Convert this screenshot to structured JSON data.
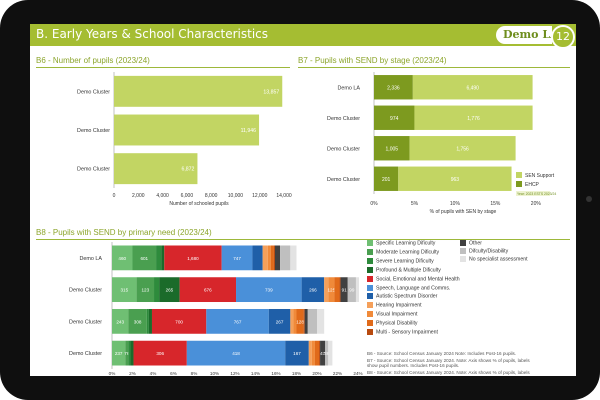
{
  "header": {
    "title": "B. Early Years & School Characteristics",
    "la_name": "Demo LA",
    "page_number": "12",
    "color": "#a5bd32"
  },
  "notes": [
    "B6 - Source: School Census January 2024 Note: Includes Post-16 pupils.",
    "B7 - Source: School Census January 2024. Note: Axis shows % of pupils, labels",
    "show pupil numbers. Includes Post-16 pupils.",
    "B8 - Source: School Census January 2024. Note: Axis shows % of pupils, labels"
  ],
  "chart_data": [
    {
      "id": "B6",
      "type": "bar",
      "orientation": "horizontal",
      "title": "B6 - Number of pupils (2023/24)",
      "categories": [
        "Demo Cluster",
        "Demo Cluster",
        "Demo Cluster"
      ],
      "values": [
        13857,
        11946,
        6872
      ],
      "value_labels": [
        "13,857",
        "11,946",
        "6,872"
      ],
      "xlabel": "Number of schooled pupils",
      "xlim": [
        0,
        14000
      ],
      "xticks": [
        "0",
        "2,000",
        "4,000",
        "6,000",
        "8,000",
        "10,000",
        "12,000",
        "14,000"
      ],
      "grid": false,
      "color": "#c2d563"
    },
    {
      "id": "B7",
      "type": "bar",
      "orientation": "horizontal",
      "stacked": true,
      "title": "B7 - Pupils with SEND by stage (2023/24)",
      "categories": [
        "Demo LA",
        "Demo Cluster",
        "Demo Cluster",
        "Demo Cluster"
      ],
      "series": [
        {
          "name": "EHCP",
          "color": "#7d9a1f",
          "values": [
            4.8,
            5.0,
            4.4,
            3.0
          ],
          "labels": [
            "2,336",
            "974",
            "1,005",
            "201"
          ]
        },
        {
          "name": "SEN Support",
          "color": "#c2d563",
          "values": [
            14.8,
            14.6,
            13.1,
            14.0
          ],
          "labels": [
            "6,490",
            "1,776",
            "1,756",
            "963"
          ]
        }
      ],
      "xlabel": "% of pupils with SEN by stage",
      "xlim": [
        0,
        22
      ],
      "xticks": [
        "0%",
        "5%",
        "10%",
        "15%",
        "20%"
      ],
      "legend_position": "bottom-right",
      "legend_note": "Year: 2023 ESTS 2023/24",
      "grid": false
    },
    {
      "id": "B8",
      "type": "bar",
      "orientation": "horizontal",
      "stacked": true,
      "title": "B8 - Pupils with SEND by primary need (2023/24)",
      "categories": [
        "Demo LA",
        "Demo Cluster",
        "Demo Cluster",
        "Demo Cluster"
      ],
      "series": [
        {
          "name": "Specific Learning Dificulty",
          "color": "#6fbf73",
          "values": [
            2.0,
            2.4,
            1.6,
            1.3
          ],
          "labels": [
            "460",
            "315",
            "243",
            "237"
          ]
        },
        {
          "name": "Moderate Learning Dificulty",
          "color": "#4a9f50",
          "values": [
            2.3,
            1.7,
            1.8,
            0.3
          ],
          "labels": [
            "601",
            "123",
            "308",
            "76"
          ]
        },
        {
          "name": "Severe Learning Dificulty",
          "color": "#2e8b3c",
          "values": [
            0.5,
            0.5,
            0.2,
            0.2
          ],
          "labels": [
            "",
            "",
            "",
            ""
          ]
        },
        {
          "name": "Profound & Multiple Dificulty",
          "color": "#1b6b2a",
          "values": [
            0.3,
            2.0,
            0.3,
            0.3
          ],
          "labels": [
            "",
            "265",
            "",
            ""
          ]
        },
        {
          "name": "Social, Emotional and Mental Health",
          "color": "#d7262b",
          "values": [
            5.6,
            5.5,
            5.3,
            5.2
          ],
          "labels": [
            "1,680",
            "676",
            "700",
            "306"
          ]
        },
        {
          "name": "Speech, Language and Comms.",
          "color": "#4a90d9",
          "values": [
            3.0,
            6.4,
            6.1,
            9.6
          ],
          "labels": [
            "747",
            "739",
            "767",
            "418"
          ]
        },
        {
          "name": "Autistic Spectrum Disorder",
          "color": "#1f5fa8",
          "values": [
            1.0,
            2.2,
            2.1,
            2.3
          ],
          "labels": [
            "",
            "266",
            "267",
            "167"
          ]
        },
        {
          "name": "Hearing Impairment",
          "color": "#f5a05a",
          "values": [
            0.5,
            0.4,
            0.3,
            0.3
          ],
          "labels": [
            "",
            "",
            "",
            ""
          ]
        },
        {
          "name": "Visual Impairment",
          "color": "#f08a3a",
          "values": [
            0.3,
            0.6,
            0.3,
            0.3
          ],
          "labels": [
            "",
            "125",
            "",
            ""
          ]
        },
        {
          "name": "Physical Disability",
          "color": "#e06a1a",
          "values": [
            0.3,
            0.5,
            0.7,
            0.4
          ],
          "labels": [
            "",
            "",
            "128",
            ""
          ]
        },
        {
          "name": "Multi - Sensory Impairment",
          "color": "#b84a0f",
          "values": [
            0.1,
            0.1,
            0.1,
            0.1
          ],
          "labels": [
            "",
            "",
            "",
            ""
          ]
        },
        {
          "name": "Other",
          "color": "#404040",
          "values": [
            0.5,
            0.7,
            0.3,
            0.5
          ],
          "labels": [
            "",
            "91",
            "",
            "47"
          ]
        },
        {
          "name": "Difculty/Disability",
          "color": "#bfbfbf",
          "values": [
            1.0,
            0.8,
            0.9,
            0.3
          ],
          "labels": [
            "",
            "99",
            "",
            "36"
          ]
        },
        {
          "name": "No specialist assessment",
          "color": "#e3e3e3",
          "values": [
            0.6,
            0.3,
            0.7,
            0.4
          ],
          "labels": [
            "",
            "",
            "",
            ""
          ]
        }
      ],
      "xlim": [
        0,
        24
      ],
      "xticks": [
        "0%",
        "2%",
        "4%",
        "6%",
        "8%",
        "10%",
        "12%",
        "14%",
        "16%",
        "18%",
        "20%",
        "22%",
        "24%"
      ],
      "legend_position": "right",
      "grid": false
    }
  ]
}
